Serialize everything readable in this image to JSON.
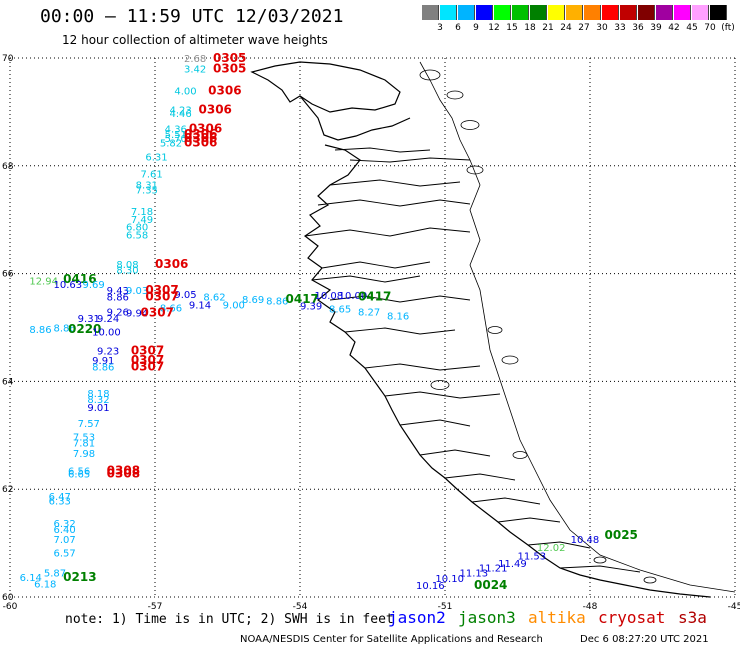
{
  "header": {
    "title": "00:00 – 11:59 UTC 12/03/2021",
    "subtitle": "12 hour collection of altimeter wave heights"
  },
  "scale": {
    "colors": [
      "#808080",
      "#00e5ff",
      "#00b4ff",
      "#0000ff",
      "#00ff00",
      "#00c000",
      "#008000",
      "#ffff00",
      "#ffb000",
      "#ff8000",
      "#ff0000",
      "#c00000",
      "#800000",
      "#a000a0",
      "#ff00ff",
      "#ffa0ff",
      "#000000"
    ],
    "labels": [
      "3",
      "6",
      "9",
      "12",
      "15",
      "18",
      "21",
      "24",
      "27",
      "30",
      "33",
      "36",
      "39",
      "42",
      "45",
      "70",
      "(ft)"
    ]
  },
  "axes": {
    "lat_labels": [
      "70",
      "68",
      "66",
      "64",
      "62",
      "60"
    ],
    "lon_labels": [
      "-60",
      "-57",
      "-54",
      "-51",
      "-48",
      "-45"
    ]
  },
  "readings": [
    {
      "t": "2.68",
      "c": "#909090",
      "lon": -56.4,
      "lat": 69.93
    },
    {
      "t": "0305",
      "c": "#e00000",
      "lon": -55.8,
      "lat": 69.93
    },
    {
      "t": "3.42",
      "c": "#00c8e0",
      "lon": -56.4,
      "lat": 69.73
    },
    {
      "t": "0305",
      "c": "#e00000",
      "lon": -55.8,
      "lat": 69.73
    },
    {
      "t": "4.00",
      "c": "#00c8e0",
      "lon": -56.6,
      "lat": 69.32
    },
    {
      "t": "0306",
      "c": "#e00000",
      "lon": -55.9,
      "lat": 69.32
    },
    {
      "t": "4.23",
      "c": "#00c8e0",
      "lon": -56.7,
      "lat": 68.97
    },
    {
      "t": "0306",
      "c": "#e00000",
      "lon": -56.1,
      "lat": 68.97
    },
    {
      "t": "4.46",
      "c": "#00c8e0",
      "lon": -56.7,
      "lat": 68.91
    },
    {
      "t": "4.36",
      "c": "#00c8e0",
      "lon": -56.8,
      "lat": 68.62
    },
    {
      "t": "0306",
      "c": "#e00000",
      "lon": -56.3,
      "lat": 68.62
    },
    {
      "t": "5.51",
      "c": "#00c8e0",
      "lon": -56.8,
      "lat": 68.52
    },
    {
      "t": "0306",
      "c": "#e00000",
      "lon": -56.4,
      "lat": 68.52
    },
    {
      "t": "5.70",
      "c": "#00c8e0",
      "lon": -56.8,
      "lat": 68.44
    },
    {
      "t": "0306",
      "c": "#e00000",
      "lon": -56.4,
      "lat": 68.44
    },
    {
      "t": "5.82",
      "c": "#00c8e0",
      "lon": -56.9,
      "lat": 68.36
    },
    {
      "t": "0306",
      "c": "#e00000",
      "lon": -56.4,
      "lat": 68.36
    },
    {
      "t": "6.31",
      "c": "#00c8e0",
      "lon": -57.2,
      "lat": 68.1
    },
    {
      "t": "7.61",
      "c": "#00c8e0",
      "lon": -57.3,
      "lat": 67.78
    },
    {
      "t": "8.31",
      "c": "#00c8e0",
      "lon": -57.4,
      "lat": 67.58
    },
    {
      "t": "7.35",
      "c": "#00c8e0",
      "lon": -57.4,
      "lat": 67.49
    },
    {
      "t": "7.18",
      "c": "#00c8e0",
      "lon": -57.5,
      "lat": 67.09
    },
    {
      "t": "7.49",
      "c": "#00c8e0",
      "lon": -57.5,
      "lat": 66.94
    },
    {
      "t": "6.80",
      "c": "#00c8e0",
      "lon": -57.6,
      "lat": 66.8
    },
    {
      "t": "6.58",
      "c": "#00c8e0",
      "lon": -57.6,
      "lat": 66.65
    },
    {
      "t": "8.08",
      "c": "#00c8e0",
      "lon": -57.8,
      "lat": 66.1
    },
    {
      "t": "0306",
      "c": "#e00000",
      "lon": -57.0,
      "lat": 66.1
    },
    {
      "t": "8.30",
      "c": "#00c8e0",
      "lon": -57.8,
      "lat": 66.0
    },
    {
      "t": "12.94",
      "c": "#50c850",
      "lon": -59.6,
      "lat": 65.8
    },
    {
      "t": "0416",
      "c": "#008000",
      "lon": -58.9,
      "lat": 65.83
    },
    {
      "t": "10.63",
      "c": "#0000dc",
      "lon": -59.1,
      "lat": 65.73
    },
    {
      "t": "9.69",
      "c": "#00b4ff",
      "lon": -58.5,
      "lat": 65.73
    },
    {
      "t": "9.43",
      "c": "#0000dc",
      "lon": -58.0,
      "lat": 65.62
    },
    {
      "t": "9.03",
      "c": "#00b4ff",
      "lon": -57.6,
      "lat": 65.62
    },
    {
      "t": "0307",
      "c": "#e00000",
      "lon": -57.2,
      "lat": 65.62
    },
    {
      "t": "9.05",
      "c": "#0000dc",
      "lon": -56.6,
      "lat": 65.55
    },
    {
      "t": "8.86",
      "c": "#0000dc",
      "lon": -58.0,
      "lat": 65.5
    },
    {
      "t": "0307",
      "c": "#e00000",
      "lon": -57.2,
      "lat": 65.5
    },
    {
      "t": "8.62",
      "c": "#00b4ff",
      "lon": -56.0,
      "lat": 65.5
    },
    {
      "t": "8.66",
      "c": "#00b4ff",
      "lon": -56.9,
      "lat": 65.3
    },
    {
      "t": "9.14",
      "c": "#0000dc",
      "lon": -56.3,
      "lat": 65.35
    },
    {
      "t": "9.00",
      "c": "#00b4ff",
      "lon": -55.6,
      "lat": 65.35
    },
    {
      "t": "8.69",
      "c": "#00b4ff",
      "lon": -55.2,
      "lat": 65.45
    },
    {
      "t": "8.86",
      "c": "#00b4ff",
      "lon": -54.7,
      "lat": 65.43
    },
    {
      "t": "0417",
      "c": "#008000",
      "lon": -54.3,
      "lat": 65.45
    },
    {
      "t": "10.08",
      "c": "#0000dc",
      "lon": -53.7,
      "lat": 65.53
    },
    {
      "t": "10.00",
      "c": "#0000dc",
      "lon": -53.2,
      "lat": 65.53
    },
    {
      "t": "0417",
      "c": "#008000",
      "lon": -52.8,
      "lat": 65.5
    },
    {
      "t": "9.39",
      "c": "#0000dc",
      "lon": -54.0,
      "lat": 65.33
    },
    {
      "t": "8.65",
      "c": "#00b4ff",
      "lon": -53.4,
      "lat": 65.28
    },
    {
      "t": "8.27",
      "c": "#00b4ff",
      "lon": -52.8,
      "lat": 65.22
    },
    {
      "t": "8.16",
      "c": "#00b4ff",
      "lon": -52.2,
      "lat": 65.15
    },
    {
      "t": "9.26",
      "c": "#0000dc",
      "lon": -58.0,
      "lat": 65.22
    },
    {
      "t": "9.94",
      "c": "#0000dc",
      "lon": -57.6,
      "lat": 65.2
    },
    {
      "t": "0307",
      "c": "#e00000",
      "lon": -57.3,
      "lat": 65.2
    },
    {
      "t": "9.31",
      "c": "#0000dc",
      "lon": -58.6,
      "lat": 65.1
    },
    {
      "t": "9.24",
      "c": "#0000dc",
      "lon": -58.2,
      "lat": 65.1
    },
    {
      "t": "8.86",
      "c": "#00b4ff",
      "lon": -59.6,
      "lat": 64.9
    },
    {
      "t": "8.86",
      "c": "#00b4ff",
      "lon": -59.1,
      "lat": 64.93
    },
    {
      "t": "0220",
      "c": "#008000",
      "lon": -58.8,
      "lat": 64.9
    },
    {
      "t": "10.00",
      "c": "#0000dc",
      "lon": -58.3,
      "lat": 64.85
    },
    {
      "t": "9.23",
      "c": "#0000dc",
      "lon": -58.2,
      "lat": 64.5
    },
    {
      "t": "0307",
      "c": "#e00000",
      "lon": -57.5,
      "lat": 64.5
    },
    {
      "t": "9.91",
      "c": "#0000dc",
      "lon": -58.3,
      "lat": 64.32
    },
    {
      "t": "0307",
      "c": "#e00000",
      "lon": -57.5,
      "lat": 64.32
    },
    {
      "t": "8.86",
      "c": "#00b4ff",
      "lon": -58.3,
      "lat": 64.2
    },
    {
      "t": "0307",
      "c": "#e00000",
      "lon": -57.5,
      "lat": 64.2
    },
    {
      "t": "8.18",
      "c": "#00b4ff",
      "lon": -58.4,
      "lat": 63.71
    },
    {
      "t": "8.32",
      "c": "#00b4ff",
      "lon": -58.4,
      "lat": 63.6
    },
    {
      "t": "9.01",
      "c": "#0000dc",
      "lon": -58.4,
      "lat": 63.45
    },
    {
      "t": "7.57",
      "c": "#00b4ff",
      "lon": -58.6,
      "lat": 63.15
    },
    {
      "t": "7.53",
      "c": "#00b4ff",
      "lon": -58.7,
      "lat": 62.9
    },
    {
      "t": "7.81",
      "c": "#00b4ff",
      "lon": -58.7,
      "lat": 62.79
    },
    {
      "t": "7.98",
      "c": "#00b4ff",
      "lon": -58.7,
      "lat": 62.6
    },
    {
      "t": "6.56",
      "c": "#00b4ff",
      "lon": -58.8,
      "lat": 62.27
    },
    {
      "t": "0308",
      "c": "#e00000",
      "lon": -58.0,
      "lat": 62.27
    },
    {
      "t": "6.65",
      "c": "#00b4ff",
      "lon": -58.8,
      "lat": 62.22
    },
    {
      "t": "0308",
      "c": "#e00000",
      "lon": -58.0,
      "lat": 62.22
    },
    {
      "t": "6.47",
      "c": "#00b4ff",
      "lon": -59.2,
      "lat": 61.8
    },
    {
      "t": "6.33",
      "c": "#00b4ff",
      "lon": -59.2,
      "lat": 61.72
    },
    {
      "t": "6.32",
      "c": "#00b4ff",
      "lon": -59.1,
      "lat": 61.3
    },
    {
      "t": "6.40",
      "c": "#00b4ff",
      "lon": -59.1,
      "lat": 61.19
    },
    {
      "t": "7.07",
      "c": "#00b4ff",
      "lon": -59.1,
      "lat": 61.0
    },
    {
      "t": "6.57",
      "c": "#00b4ff",
      "lon": -59.1,
      "lat": 60.75
    },
    {
      "t": "6.14",
      "c": "#00b4ff",
      "lon": -59.8,
      "lat": 60.3
    },
    {
      "t": "5.87",
      "c": "#00b4ff",
      "lon": -59.3,
      "lat": 60.38
    },
    {
      "t": "0213",
      "c": "#008000",
      "lon": -58.9,
      "lat": 60.3
    },
    {
      "t": "6.18",
      "c": "#00b4ff",
      "lon": -59.5,
      "lat": 60.18
    },
    {
      "t": "10.16",
      "c": "#0000dc",
      "lon": -51.6,
      "lat": 60.15
    },
    {
      "t": "10.10",
      "c": "#0000dc",
      "lon": -51.2,
      "lat": 60.28
    },
    {
      "t": "11.13",
      "c": "#0000dc",
      "lon": -50.7,
      "lat": 60.38
    },
    {
      "t": "11.21",
      "c": "#0000dc",
      "lon": -50.3,
      "lat": 60.47
    },
    {
      "t": "11.49",
      "c": "#0000dc",
      "lon": -49.9,
      "lat": 60.56
    },
    {
      "t": "11.53",
      "c": "#0000dc",
      "lon": -49.5,
      "lat": 60.7
    },
    {
      "t": "0024",
      "c": "#008000",
      "lon": -50.4,
      "lat": 60.15
    },
    {
      "t": "12.02",
      "c": "#50c850",
      "lon": -49.1,
      "lat": 60.85
    },
    {
      "t": "10.48",
      "c": "#0000dc",
      "lon": -48.4,
      "lat": 61.0
    },
    {
      "t": "0025",
      "c": "#008000",
      "lon": -47.7,
      "lat": 61.08
    }
  ],
  "footer": {
    "note": "note: 1) Time is in UTC; 2) SWH is in feet",
    "legend": [
      {
        "name": "jason2",
        "color": "#0000ff"
      },
      {
        "name": "jason3",
        "color": "#008000"
      },
      {
        "name": "altika",
        "color": "#ff8c00"
      },
      {
        "name": "cryosat",
        "color": "#cc0000"
      },
      {
        "name": "s3a",
        "color": "#b00000"
      }
    ],
    "credit": "NOAA/NESDIS Center for Satellite Applications and Research",
    "timestamp": "Dec  6 08:27:20 UTC 2021"
  }
}
